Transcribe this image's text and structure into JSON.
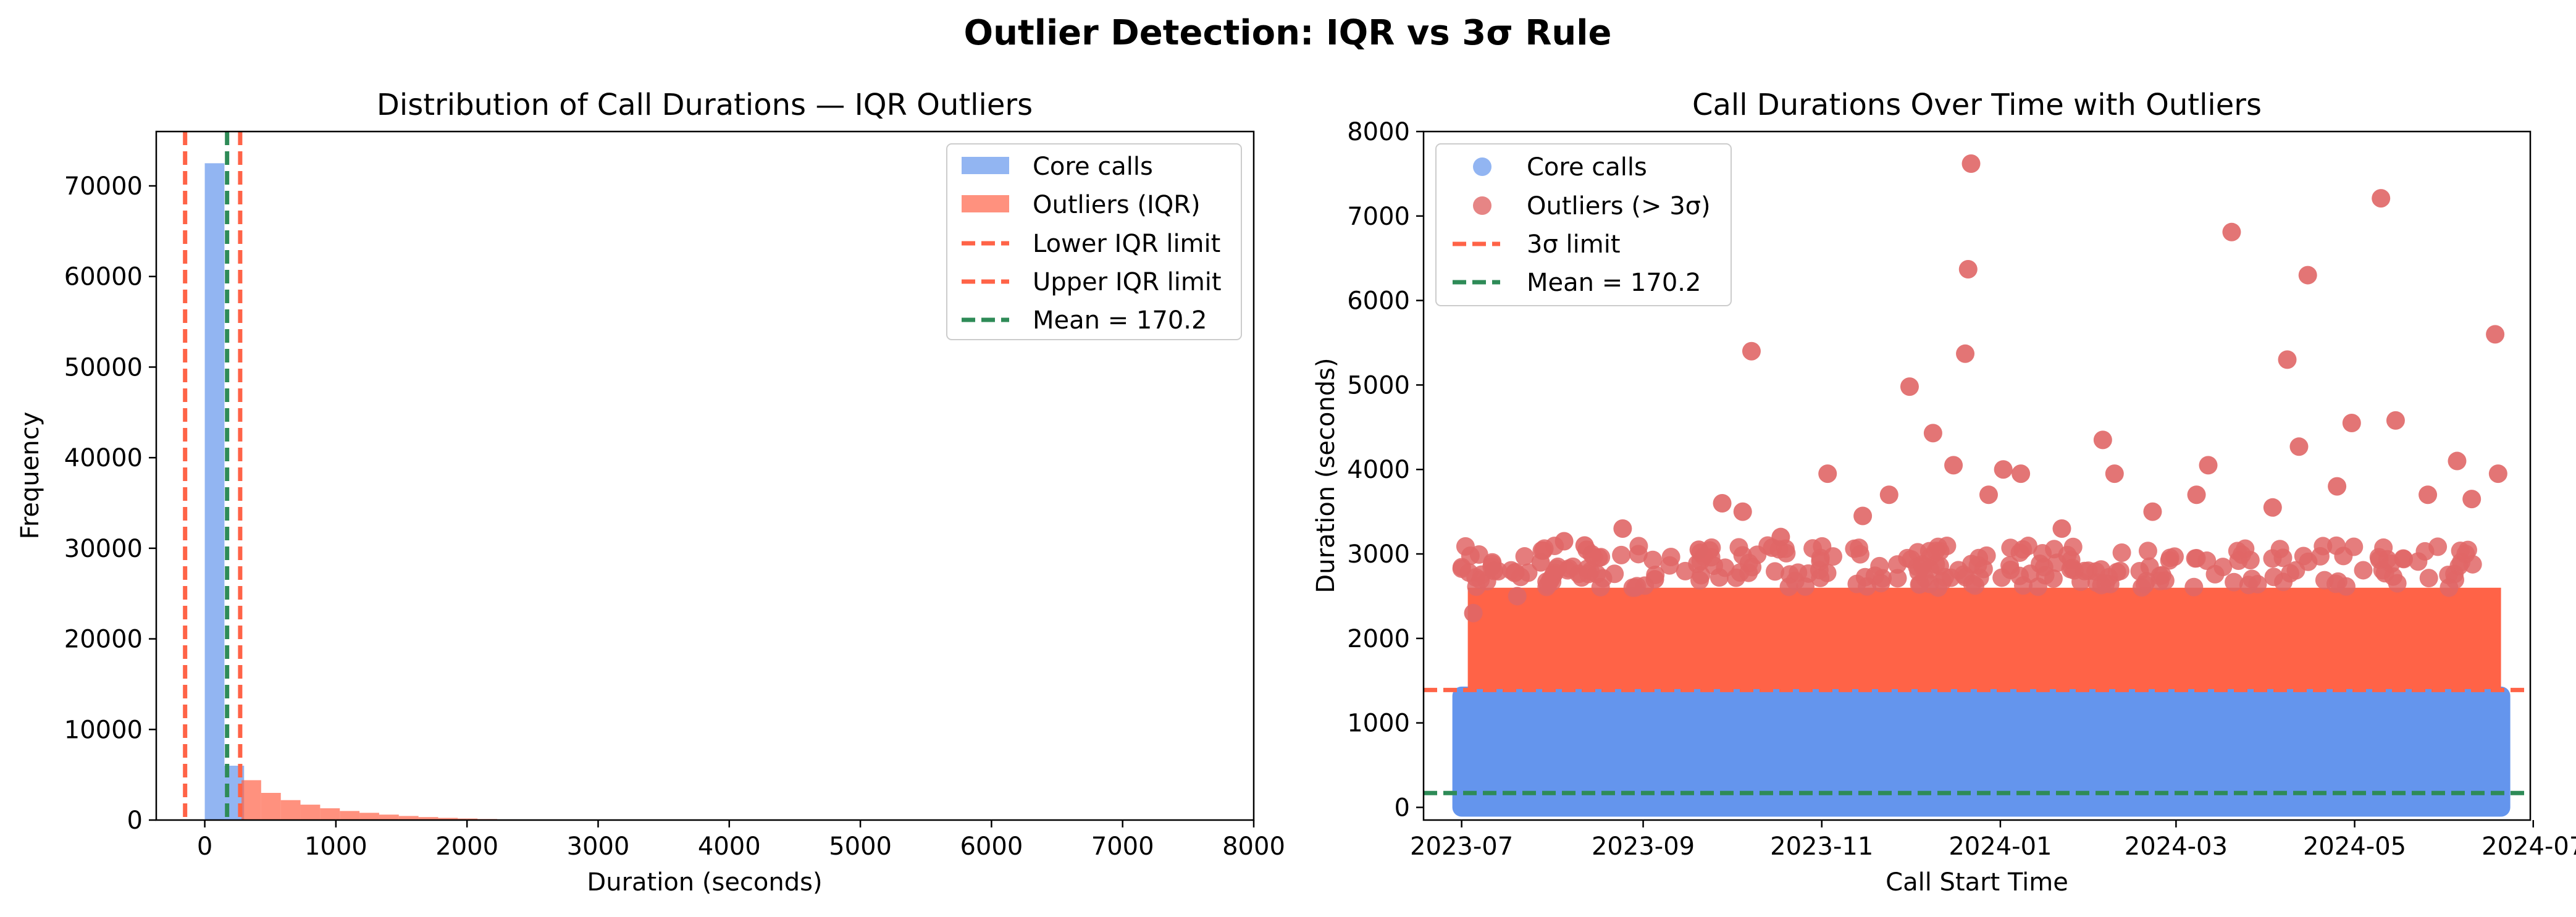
{
  "figure_title": "Outlier Detection: IQR vs 3σ Rule",
  "colors": {
    "core": "#6495ED",
    "outlier": "#FF6347",
    "outlier_scatter": "#E06666",
    "limit": "#FF6347",
    "mean": "#2E8B57"
  },
  "chart_data": [
    {
      "type": "bar",
      "title": "Distribution of Call Durations — IQR Outliers",
      "xlabel": "Duration (seconds)",
      "ylabel": "Frequency",
      "xlim": [
        -370,
        8000
      ],
      "ylim": [
        0,
        76000
      ],
      "xticks": [
        "0",
        "1000",
        "2000",
        "3000",
        "4000",
        "5000",
        "6000",
        "7000",
        "8000"
      ],
      "yticks": [
        "0",
        "10000",
        "20000",
        "30000",
        "40000",
        "50000",
        "60000",
        "70000"
      ],
      "bin_width": 150,
      "core_bins": [
        {
          "x0": 0,
          "count": 72500
        },
        {
          "x0": 150,
          "count": 6000
        }
      ],
      "outlier_bins": [
        {
          "x0": 280,
          "count": 4400
        },
        {
          "x0": 430,
          "count": 3000
        },
        {
          "x0": 580,
          "count": 2200
        },
        {
          "x0": 730,
          "count": 1700
        },
        {
          "x0": 880,
          "count": 1300
        },
        {
          "x0": 1030,
          "count": 1000
        },
        {
          "x0": 1180,
          "count": 800
        },
        {
          "x0": 1330,
          "count": 600
        },
        {
          "x0": 1480,
          "count": 450
        },
        {
          "x0": 1630,
          "count": 330
        },
        {
          "x0": 1780,
          "count": 240
        },
        {
          "x0": 1930,
          "count": 170
        },
        {
          "x0": 2080,
          "count": 110
        },
        {
          "x0": 2230,
          "count": 70
        },
        {
          "x0": 2380,
          "count": 40
        },
        {
          "x0": 2530,
          "count": 20
        },
        {
          "x0": 2680,
          "count": 10
        }
      ],
      "lower_iqr_limit": -150,
      "upper_iqr_limit": 270,
      "mean": 170.2,
      "legend": [
        "Core calls",
        "Outliers (IQR)",
        "Lower IQR limit",
        "Upper IQR limit",
        "Mean = 170.2"
      ],
      "legend_position": "top-right"
    },
    {
      "type": "scatter",
      "title": "Call Durations Over Time with Outliers",
      "xlabel": "Call Start Time",
      "ylabel": "Duration (seconds)",
      "xlim": [
        "2023-06-18",
        "2024-06-30"
      ],
      "ylim": [
        -150,
        8000
      ],
      "xticks": [
        "2023-07",
        "2023-09",
        "2023-11",
        "2024-01",
        "2024-03",
        "2024-05",
        "2024-07"
      ],
      "xtick_dates": [
        "2023-07-01",
        "2023-09-01",
        "2023-11-01",
        "2024-01-01",
        "2024-03-01",
        "2024-05-01",
        "2024-07-01"
      ],
      "yticks": [
        "0",
        "1000",
        "2000",
        "3000",
        "4000",
        "5000",
        "6000",
        "7000",
        "8000"
      ],
      "data_range": [
        "2023-07-01",
        "2024-06-20"
      ],
      "core_band": [
        0,
        1320
      ],
      "outlier_dense_band": [
        1400,
        2600
      ],
      "three_sigma_limit": 1390,
      "mean": 170.2,
      "outlier_points": [
        {
          "date": "2023-07-05",
          "y": 2300
        },
        {
          "date": "2023-07-12",
          "y": 2800
        },
        {
          "date": "2023-07-20",
          "y": 2500
        },
        {
          "date": "2023-07-28",
          "y": 2900
        },
        {
          "date": "2023-08-05",
          "y": 3150
        },
        {
          "date": "2023-08-12",
          "y": 3100
        },
        {
          "date": "2023-08-25",
          "y": 3300
        },
        {
          "date": "2023-09-05",
          "y": 2700
        },
        {
          "date": "2023-09-20",
          "y": 3050
        },
        {
          "date": "2023-09-28",
          "y": 3600
        },
        {
          "date": "2023-10-05",
          "y": 3500
        },
        {
          "date": "2023-10-08",
          "y": 5400
        },
        {
          "date": "2023-10-18",
          "y": 3200
        },
        {
          "date": "2023-11-03",
          "y": 3950
        },
        {
          "date": "2023-11-15",
          "y": 3450
        },
        {
          "date": "2023-11-24",
          "y": 3700
        },
        {
          "date": "2023-12-01",
          "y": 4980
        },
        {
          "date": "2023-12-09",
          "y": 4430
        },
        {
          "date": "2023-12-16",
          "y": 4050
        },
        {
          "date": "2023-12-20",
          "y": 5370
        },
        {
          "date": "2023-12-21",
          "y": 6370
        },
        {
          "date": "2023-12-22",
          "y": 7620
        },
        {
          "date": "2023-12-28",
          "y": 3700
        },
        {
          "date": "2024-01-02",
          "y": 4000
        },
        {
          "date": "2024-01-08",
          "y": 3950
        },
        {
          "date": "2024-01-22",
          "y": 3300
        },
        {
          "date": "2024-02-05",
          "y": 4350
        },
        {
          "date": "2024-02-09",
          "y": 3950
        },
        {
          "date": "2024-02-22",
          "y": 3500
        },
        {
          "date": "2024-03-08",
          "y": 3700
        },
        {
          "date": "2024-03-12",
          "y": 4050
        },
        {
          "date": "2024-03-20",
          "y": 6810
        },
        {
          "date": "2024-04-03",
          "y": 3550
        },
        {
          "date": "2024-04-08",
          "y": 5300
        },
        {
          "date": "2024-04-12",
          "y": 4270
        },
        {
          "date": "2024-04-15",
          "y": 6300
        },
        {
          "date": "2024-04-25",
          "y": 3800
        },
        {
          "date": "2024-04-30",
          "y": 4550
        },
        {
          "date": "2024-05-10",
          "y": 7210
        },
        {
          "date": "2024-05-15",
          "y": 4580
        },
        {
          "date": "2024-05-26",
          "y": 3700
        },
        {
          "date": "2024-06-05",
          "y": 4100
        },
        {
          "date": "2024-06-10",
          "y": 3650
        },
        {
          "date": "2024-06-18",
          "y": 5600
        },
        {
          "date": "2024-06-19",
          "y": 3950
        }
      ],
      "legend": [
        "Core calls",
        "Outliers (> 3σ)",
        "3σ limit",
        "Mean = 170.2"
      ],
      "legend_position": "top-left"
    }
  ]
}
